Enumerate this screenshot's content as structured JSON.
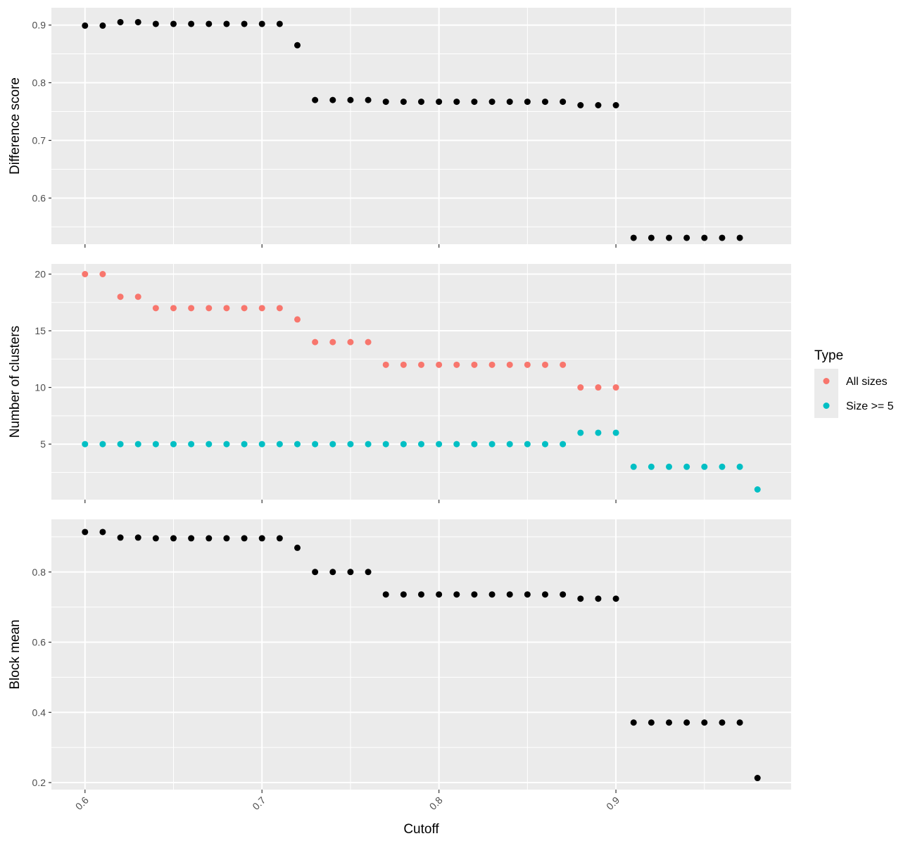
{
  "chart_data": [
    {
      "type": "scatter",
      "panel": "difference-score",
      "ylabel": "Difference score",
      "xlabel": "",
      "yticks": [
        0.6,
        0.7,
        0.8,
        0.9
      ],
      "ylim": [
        0.52,
        0.93
      ],
      "series": [
        {
          "name": "",
          "color": "#000000",
          "x": [
            0.6,
            0.61,
            0.62,
            0.63,
            0.64,
            0.65,
            0.66,
            0.67,
            0.68,
            0.69,
            0.7,
            0.71,
            0.72,
            0.73,
            0.74,
            0.75,
            0.76,
            0.77,
            0.78,
            0.79,
            0.8,
            0.81,
            0.82,
            0.83,
            0.84,
            0.85,
            0.86,
            0.87,
            0.88,
            0.89,
            0.9,
            0.91,
            0.92,
            0.93,
            0.94,
            0.95,
            0.96,
            0.97
          ],
          "y": [
            0.899,
            0.899,
            0.905,
            0.905,
            0.902,
            0.902,
            0.902,
            0.902,
            0.902,
            0.902,
            0.902,
            0.902,
            0.865,
            0.77,
            0.77,
            0.77,
            0.77,
            0.767,
            0.767,
            0.767,
            0.767,
            0.767,
            0.767,
            0.767,
            0.767,
            0.767,
            0.767,
            0.767,
            0.761,
            0.761,
            0.761,
            0.531,
            0.531,
            0.531,
            0.531,
            0.531,
            0.531,
            0.531
          ]
        }
      ]
    },
    {
      "type": "scatter",
      "panel": "number-of-clusters",
      "ylabel": "Number of clusters",
      "xlabel": "",
      "yticks": [
        5,
        10,
        15,
        20
      ],
      "ylim": [
        0.1,
        20.9
      ],
      "legend": {
        "title": "Type",
        "placement": "right",
        "entries": [
          {
            "label": "All sizes",
            "color": "#F8766D"
          },
          {
            "label": "Size >= 5",
            "color": "#00BFC4"
          }
        ]
      },
      "series": [
        {
          "name": "All sizes",
          "color": "#F8766D",
          "x": [
            0.6,
            0.61,
            0.62,
            0.63,
            0.64,
            0.65,
            0.66,
            0.67,
            0.68,
            0.69,
            0.7,
            0.71,
            0.72,
            0.73,
            0.74,
            0.75,
            0.76,
            0.77,
            0.78,
            0.79,
            0.8,
            0.81,
            0.82,
            0.83,
            0.84,
            0.85,
            0.86,
            0.87,
            0.88,
            0.89,
            0.9
          ],
          "y": [
            20,
            20,
            18,
            18,
            17,
            17,
            17,
            17,
            17,
            17,
            17,
            17,
            16,
            14,
            14,
            14,
            14,
            12,
            12,
            12,
            12,
            12,
            12,
            12,
            12,
            12,
            12,
            12,
            10,
            10,
            10
          ]
        },
        {
          "name": "Size >= 5",
          "color": "#00BFC4",
          "x": [
            0.6,
            0.61,
            0.62,
            0.63,
            0.64,
            0.65,
            0.66,
            0.67,
            0.68,
            0.69,
            0.7,
            0.71,
            0.72,
            0.73,
            0.74,
            0.75,
            0.76,
            0.77,
            0.78,
            0.79,
            0.8,
            0.81,
            0.82,
            0.83,
            0.84,
            0.85,
            0.86,
            0.87,
            0.88,
            0.89,
            0.9,
            0.91,
            0.92,
            0.93,
            0.94,
            0.95,
            0.96,
            0.97,
            0.98
          ],
          "y": [
            5,
            5,
            5,
            5,
            5,
            5,
            5,
            5,
            5,
            5,
            5,
            5,
            5,
            5,
            5,
            5,
            5,
            5,
            5,
            5,
            5,
            5,
            5,
            5,
            5,
            5,
            5,
            5,
            6,
            6,
            6,
            3,
            3,
            3,
            3,
            3,
            3,
            3,
            1
          ]
        }
      ]
    },
    {
      "type": "scatter",
      "panel": "block-mean",
      "ylabel": "Block mean",
      "xlabel": "Cutoff",
      "yticks": [
        0.2,
        0.4,
        0.6,
        0.8
      ],
      "ylim": [
        0.18,
        0.95
      ],
      "series": [
        {
          "name": "",
          "color": "#000000",
          "x": [
            0.6,
            0.61,
            0.62,
            0.63,
            0.64,
            0.65,
            0.66,
            0.67,
            0.68,
            0.69,
            0.7,
            0.71,
            0.72,
            0.73,
            0.74,
            0.75,
            0.76,
            0.77,
            0.78,
            0.79,
            0.8,
            0.81,
            0.82,
            0.83,
            0.84,
            0.85,
            0.86,
            0.87,
            0.88,
            0.89,
            0.9,
            0.91,
            0.92,
            0.93,
            0.94,
            0.95,
            0.96,
            0.97,
            0.98
          ],
          "y": [
            0.914,
            0.914,
            0.898,
            0.898,
            0.896,
            0.896,
            0.896,
            0.896,
            0.896,
            0.896,
            0.896,
            0.896,
            0.869,
            0.8,
            0.8,
            0.8,
            0.8,
            0.736,
            0.736,
            0.736,
            0.736,
            0.736,
            0.736,
            0.736,
            0.736,
            0.736,
            0.736,
            0.736,
            0.724,
            0.724,
            0.724,
            0.371,
            0.371,
            0.371,
            0.371,
            0.371,
            0.371,
            0.371,
            0.213
          ]
        }
      ]
    }
  ],
  "x_axis": {
    "title": "Cutoff",
    "ticks": [
      0.6,
      0.7,
      0.8,
      0.9
    ],
    "tick_labels": [
      "0.6",
      "0.7",
      "0.8",
      "0.9"
    ],
    "xlim": [
      0.581,
      0.999
    ]
  },
  "style": {
    "panel_background": "#EBEBEB",
    "grid_color": "#FFFFFF",
    "point_color_default": "#000000"
  }
}
